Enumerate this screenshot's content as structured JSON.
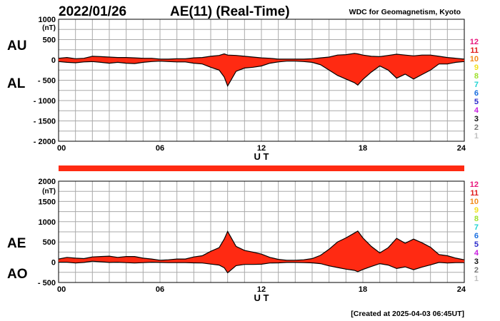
{
  "header": {
    "date": "2022/01/26",
    "title": "AE(11) (Real-Time)",
    "source": "WDC for Geomagnetism, Kyoto"
  },
  "footer": {
    "created": "[Created at 2025-04-03 06:45UT]"
  },
  "station_legend": {
    "labels": [
      "12",
      "11",
      "10",
      "9",
      "8",
      "7",
      "6",
      "5",
      "4",
      "3",
      "2",
      "1"
    ],
    "colors": [
      "#e8177d",
      "#e01b1b",
      "#f28c1c",
      "#f2e21c",
      "#9ee02c",
      "#1fd3d3",
      "#1a6fe0",
      "#2a2acb",
      "#c81ee0",
      "#111111",
      "#777777",
      "#c0c0c0"
    ]
  },
  "colors": {
    "fill": "#ff2a12",
    "outline": "#000000",
    "grid": "#aaaaaa",
    "bar": "#ff2a12"
  },
  "chart_data": [
    {
      "type": "area",
      "panel": "AU / AL",
      "labels_upper": "AU",
      "labels_lower": "AL",
      "unit": "(nT)",
      "xlabel": "U T",
      "xlim": [
        0,
        24
      ],
      "xticks": [
        "00",
        "06",
        "12",
        "18",
        "24"
      ],
      "ylim": [
        -2000,
        1000
      ],
      "yticks": [
        "1000",
        "500",
        "0",
        "- 500",
        "- 1000",
        "- 1500",
        "- 2000"
      ],
      "ytick_values": [
        1000,
        500,
        0,
        -500,
        -1000,
        -1500,
        -2000
      ],
      "grid": true,
      "x": [
        0,
        0.5,
        1,
        1.5,
        2,
        2.5,
        3,
        3.5,
        4,
        4.5,
        5,
        5.5,
        6,
        6.5,
        7,
        7.5,
        8,
        8.5,
        9,
        9.5,
        9.8,
        10,
        10.5,
        11,
        11.5,
        12,
        12.5,
        13,
        13.5,
        14,
        14.5,
        15,
        15.5,
        16,
        16.5,
        17,
        17.5,
        17.7,
        18,
        18.5,
        19,
        19.5,
        20,
        20.5,
        21,
        21.5,
        22,
        22.5,
        23,
        23.5,
        24
      ],
      "series": [
        {
          "name": "AU",
          "values": [
            40,
            60,
            30,
            40,
            90,
            80,
            70,
            60,
            60,
            50,
            40,
            40,
            20,
            20,
            30,
            30,
            50,
            60,
            90,
            110,
            150,
            120,
            110,
            90,
            70,
            50,
            40,
            20,
            20,
            20,
            20,
            30,
            50,
            70,
            120,
            130,
            160,
            150,
            120,
            90,
            80,
            110,
            140,
            120,
            100,
            120,
            120,
            90,
            60,
            40,
            20
          ]
        },
        {
          "name": "AL",
          "values": [
            -40,
            -60,
            -70,
            -50,
            -40,
            -60,
            -80,
            -60,
            -80,
            -90,
            -60,
            -40,
            -30,
            -40,
            -50,
            -50,
            -80,
            -100,
            -180,
            -250,
            -420,
            -640,
            -280,
            -200,
            -180,
            -150,
            -80,
            -50,
            -30,
            -30,
            -40,
            -60,
            -120,
            -250,
            -380,
            -470,
            -560,
            -620,
            -480,
            -300,
            -150,
            -250,
            -450,
            -350,
            -470,
            -360,
            -250,
            -100,
            -100,
            -60,
            -40
          ]
        }
      ]
    },
    {
      "type": "area",
      "panel": "AE / AO",
      "labels_upper": "AE",
      "labels_lower": "AO",
      "unit": "(nT)",
      "xlabel": "U T",
      "xlim": [
        0,
        24
      ],
      "xticks": [
        "00",
        "06",
        "12",
        "18",
        "24"
      ],
      "ylim": [
        -500,
        2000
      ],
      "yticks": [
        "2000",
        "1500",
        "1000",
        "500",
        "0",
        "- 500"
      ],
      "ytick_values": [
        2000,
        1500,
        1000,
        500,
        0,
        -500
      ],
      "grid": true,
      "x": [
        0,
        0.5,
        1,
        1.5,
        2,
        2.5,
        3,
        3.5,
        4,
        4.5,
        5,
        5.5,
        6,
        6.5,
        7,
        7.5,
        8,
        8.5,
        9,
        9.5,
        9.8,
        10,
        10.5,
        11,
        11.5,
        12,
        12.5,
        13,
        13.5,
        14,
        14.5,
        15,
        15.5,
        16,
        16.5,
        17,
        17.5,
        17.7,
        18,
        18.5,
        19,
        19.5,
        20,
        20.5,
        21,
        21.5,
        22,
        22.5,
        23,
        23.5,
        24
      ],
      "series": [
        {
          "name": "AE",
          "values": [
            80,
            120,
            100,
            90,
            130,
            140,
            150,
            120,
            140,
            140,
            100,
            80,
            50,
            60,
            80,
            80,
            130,
            160,
            270,
            360,
            570,
            760,
            390,
            290,
            250,
            200,
            120,
            70,
            50,
            50,
            60,
            90,
            170,
            320,
            500,
            600,
            720,
            770,
            600,
            390,
            230,
            360,
            590,
            470,
            570,
            480,
            370,
            190,
            160,
            100,
            60
          ]
        },
        {
          "name": "AO",
          "values": [
            0,
            0,
            -20,
            -5,
            25,
            10,
            -5,
            0,
            -10,
            -20,
            -10,
            0,
            -5,
            -10,
            -10,
            -10,
            -15,
            -20,
            -45,
            -70,
            -135,
            -260,
            -85,
            -55,
            -55,
            -50,
            -20,
            -15,
            -5,
            -5,
            -10,
            -15,
            -35,
            -90,
            -130,
            -170,
            -200,
            -235,
            -180,
            -105,
            -35,
            -70,
            -155,
            -115,
            -185,
            -120,
            -65,
            -5,
            -20,
            -10,
            -10
          ]
        }
      ]
    }
  ]
}
